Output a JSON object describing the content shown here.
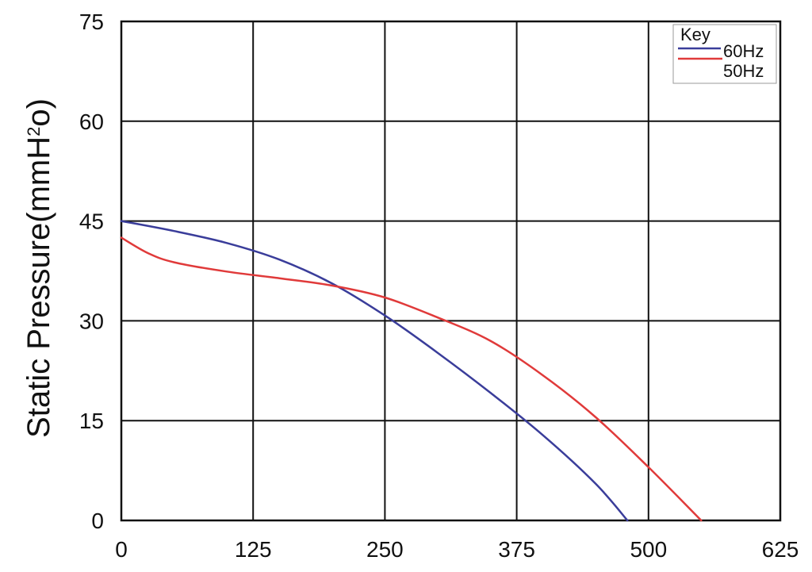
{
  "chart_data": {
    "type": "line",
    "title": "",
    "xlabel": "",
    "ylabel": "Static Pressure(mmH²o)",
    "ylabel_parts": {
      "main": "Static Pressure(mmH",
      "sup": "2",
      "tail": "o)"
    },
    "xlim": [
      0,
      625
    ],
    "ylim": [
      0,
      75
    ],
    "x_ticks": [
      0,
      125,
      250,
      375,
      500,
      625
    ],
    "y_ticks": [
      0,
      15,
      30,
      45,
      60,
      75
    ],
    "x_tick_labels": [
      "0",
      "125",
      "250",
      "375",
      "500",
      "625"
    ],
    "y_tick_labels": [
      "0",
      "15",
      "30",
      "45",
      "60",
      "75"
    ],
    "grid": true,
    "legend": {
      "title": "Key",
      "placement": "top-right"
    },
    "series": [
      {
        "name": "60Hz",
        "color": "#3a3d9a",
        "x": [
          0,
          50,
          100,
          150,
          200,
          250,
          300,
          350,
          400,
          450,
          480
        ],
        "y": [
          45,
          43.5,
          41.7,
          39.2,
          35.6,
          30.8,
          25.2,
          19.2,
          12.8,
          5.5,
          0
        ]
      },
      {
        "name": "50Hz",
        "color": "#e03a3a",
        "x": [
          0,
          25,
          50,
          100,
          150,
          200,
          250,
          300,
          350,
          400,
          450,
          500,
          550
        ],
        "y": [
          42.5,
          40.2,
          38.8,
          37.4,
          36.4,
          35.3,
          33.5,
          30.5,
          27,
          21.8,
          15.5,
          8,
          0
        ]
      }
    ]
  }
}
